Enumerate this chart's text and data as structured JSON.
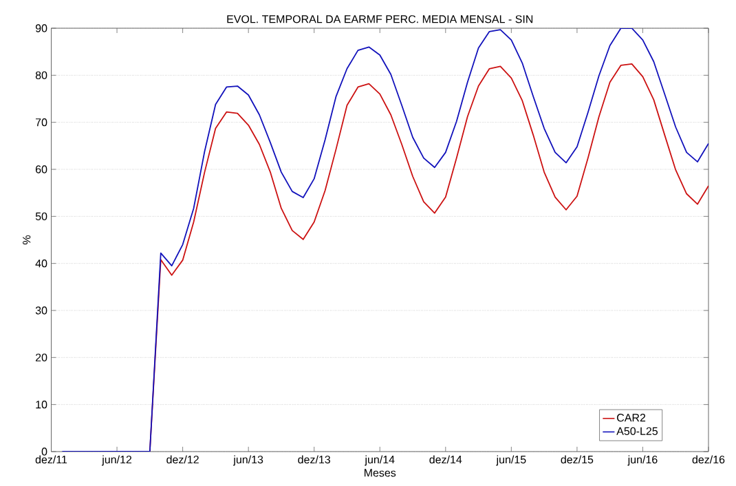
{
  "chart_data": {
    "type": "line",
    "title": "EVOL. TEMPORAL DA EARMF PERC. MEDIA MENSAL - SIN",
    "xlabel": "Meses",
    "ylabel": "%",
    "x": [
      "2012-01",
      "2012-02",
      "2012-03",
      "2012-04",
      "2012-05",
      "2012-06",
      "2012-07",
      "2012-08",
      "2012-09",
      "2012-10",
      "2012-11",
      "2012-12",
      "2013-01",
      "2013-02",
      "2013-03",
      "2013-04",
      "2013-05",
      "2013-06",
      "2013-07",
      "2013-08",
      "2013-09",
      "2013-10",
      "2013-11",
      "2013-12",
      "2014-01",
      "2014-02",
      "2014-03",
      "2014-04",
      "2014-05",
      "2014-06",
      "2014-07",
      "2014-08",
      "2014-09",
      "2014-10",
      "2014-11",
      "2014-12",
      "2015-01",
      "2015-02",
      "2015-03",
      "2015-04",
      "2015-05",
      "2015-06",
      "2015-07",
      "2015-08",
      "2015-09",
      "2015-10",
      "2015-11",
      "2015-12",
      "2016-01",
      "2016-02",
      "2016-03",
      "2016-04",
      "2016-05",
      "2016-06",
      "2016-07",
      "2016-08",
      "2016-09",
      "2016-10",
      "2016-11",
      "2016-12"
    ],
    "series": [
      {
        "name": "CAR2",
        "color": "#cc1111",
        "values": [
          null,
          null,
          null,
          null,
          null,
          null,
          null,
          null,
          0,
          40.8,
          37.5,
          40.7,
          48.8,
          59.4,
          68.7,
          72.2,
          71.9,
          69.4,
          65.3,
          59.4,
          51.7,
          47,
          45.1,
          48.8,
          55.5,
          64.3,
          73.6,
          77.5,
          78.2,
          76.0,
          71.6,
          65.3,
          58.5,
          53.1,
          50.7,
          54.1,
          62.4,
          71.2,
          77.7,
          81.4,
          81.9,
          79.4,
          74.6,
          67.3,
          59.4,
          54.1,
          51.4,
          54.3,
          62.4,
          71.2,
          78.5,
          82.1,
          82.4,
          79.7,
          74.8,
          67.3,
          59.9,
          54.8,
          52.6,
          56.5
        ]
      },
      {
        "name": "A50-L25",
        "color": "#1111bb",
        "values": [
          0,
          0,
          0,
          0,
          0,
          0,
          0,
          0,
          0,
          42.2,
          39.5,
          44,
          51.7,
          63.8,
          73.8,
          77.5,
          77.7,
          75.8,
          71.6,
          65.7,
          59.4,
          55.3,
          54,
          58,
          66.3,
          75.5,
          81.4,
          85.3,
          86.0,
          84.3,
          80.2,
          73.6,
          66.8,
          62.4,
          60.4,
          63.6,
          70.2,
          78.5,
          85.8,
          89.3,
          89.7,
          87.5,
          82.6,
          75.5,
          68.7,
          63.6,
          61.4,
          64.8,
          72.1,
          79.9,
          86.3,
          90,
          90,
          87.5,
          82.9,
          76.0,
          69.0,
          63.6,
          61.6,
          65.5
        ]
      }
    ],
    "xlim": [
      "2011-12",
      "2016-12"
    ],
    "xticks": [
      {
        "value": "2011-12",
        "label": "dez/11"
      },
      {
        "value": "2012-06",
        "label": "jun/12"
      },
      {
        "value": "2012-12",
        "label": "dez/12"
      },
      {
        "value": "2013-06",
        "label": "jun/13"
      },
      {
        "value": "2013-12",
        "label": "dez/13"
      },
      {
        "value": "2014-06",
        "label": "jun/14"
      },
      {
        "value": "2014-12",
        "label": "dez/14"
      },
      {
        "value": "2015-06",
        "label": "jun/15"
      },
      {
        "value": "2015-12",
        "label": "dez/15"
      },
      {
        "value": "2016-06",
        "label": "jun/16"
      },
      {
        "value": "2016-12",
        "label": "dez/16"
      }
    ],
    "ylim": [
      0,
      90
    ],
    "yticks": [
      0,
      10,
      20,
      30,
      40,
      50,
      60,
      70,
      80,
      90
    ],
    "grid": "y",
    "legend": "bottom right",
    "line_style": "solid"
  }
}
